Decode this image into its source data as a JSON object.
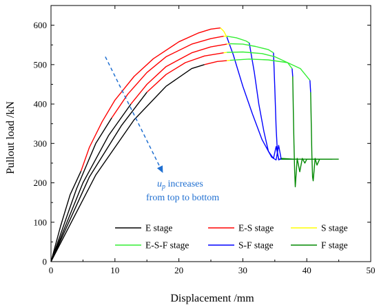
{
  "chart_data": {
    "type": "line",
    "title": "",
    "xlabel": "Displacement /mm",
    "ylabel": "Pullout load /kN",
    "xlim": [
      0,
      50
    ],
    "ylim": [
      0,
      650
    ],
    "xticks": [
      0,
      10,
      20,
      30,
      40,
      50
    ],
    "yticks": [
      0,
      100,
      200,
      300,
      400,
      500,
      600
    ],
    "grid": false,
    "legend_position": "bottom-right",
    "colors": {
      "E": "#000000",
      "E-S": "#ff0000",
      "S": "#ffff00",
      "E-S-F": "#33ee33",
      "S-F": "#0000ff",
      "F": "#008800",
      "annotation": "#1f6fd1"
    },
    "legend": [
      {
        "label": "E stage",
        "stage": "E"
      },
      {
        "label": "E-S stage",
        "stage": "E-S"
      },
      {
        "label": "S stage",
        "stage": "S"
      },
      {
        "label": "E-S-F stage",
        "stage": "E-S-F"
      },
      {
        "label": "S-F stage",
        "stage": "S-F"
      },
      {
        "label": "F stage",
        "stage": "F"
      }
    ],
    "series": [
      {
        "segments": [
          {
            "stage": "E",
            "points": [
              [
                0,
                0
              ],
              [
                1.5,
                90
              ],
              [
                3,
                170
              ],
              [
                4.7,
                230
              ]
            ]
          },
          {
            "stage": "E-S",
            "points": [
              [
                4.7,
                230
              ],
              [
                6,
                290
              ],
              [
                8,
                355
              ],
              [
                10,
                410
              ],
              [
                13,
                470
              ],
              [
                16,
                515
              ],
              [
                20,
                558
              ],
              [
                23,
                580
              ],
              [
                25,
                590
              ],
              [
                26.5,
                593
              ]
            ]
          },
          {
            "stage": "S",
            "points": [
              [
                26.5,
                593
              ],
              [
                27,
                585
              ],
              [
                27.5,
                570
              ]
            ]
          },
          {
            "stage": "S-F",
            "points": [
              [
                27.5,
                570
              ],
              [
                28.5,
                525
              ],
              [
                30,
                445
              ],
              [
                31.5,
                375
              ],
              [
                33,
                310
              ],
              [
                34.5,
                265
              ],
              [
                35.2,
                258
              ],
              [
                35.6,
                295
              ],
              [
                36,
                260
              ],
              [
                38,
                260
              ]
            ]
          },
          {
            "stage": "F",
            "points": [
              [
                38,
                260
              ],
              [
                45,
                260
              ]
            ]
          }
        ]
      },
      {
        "segments": [
          {
            "stage": "E",
            "points": [
              [
                0,
                0
              ],
              [
                4,
                185
              ],
              [
                7,
                300
              ],
              [
                9.5,
                365
              ]
            ]
          },
          {
            "stage": "E-S",
            "points": [
              [
                9.5,
                365
              ],
              [
                12,
                425
              ],
              [
                15,
                480
              ],
              [
                18,
                520
              ],
              [
                22,
                552
              ],
              [
                25,
                566
              ],
              [
                27,
                572
              ]
            ]
          },
          {
            "stage": "S",
            "points": [
              [
                27,
                572
              ],
              [
                27.5,
                572
              ]
            ]
          },
          {
            "stage": "E-S-F",
            "points": [
              [
                27.5,
                572
              ],
              [
                29,
                568
              ],
              [
                30.5,
                560
              ],
              [
                31,
                555
              ]
            ]
          },
          {
            "stage": "S-F",
            "points": [
              [
                31,
                555
              ],
              [
                31.8,
                480
              ],
              [
                32.5,
                400
              ],
              [
                33.3,
                330
              ],
              [
                34,
                280
              ],
              [
                34.8,
                262
              ],
              [
                35.2,
                292
              ],
              [
                35.6,
                260
              ],
              [
                36,
                260
              ]
            ]
          },
          {
            "stage": "F",
            "points": [
              [
                36,
                260
              ],
              [
                38,
                260
              ]
            ]
          }
        ]
      },
      {
        "segments": [
          {
            "stage": "E",
            "points": [
              [
                0,
                0
              ],
              [
                5,
                200
              ],
              [
                9,
                320
              ],
              [
                12.5,
                400
              ]
            ]
          },
          {
            "stage": "E-S",
            "points": [
              [
                12.5,
                400
              ],
              [
                15,
                450
              ],
              [
                18,
                495
              ],
              [
                22,
                530
              ],
              [
                25,
                545
              ],
              [
                27.5,
                552
              ]
            ]
          },
          {
            "stage": "S",
            "points": [
              [
                27.5,
                552
              ],
              [
                28,
                553
              ]
            ]
          },
          {
            "stage": "E-S-F",
            "points": [
              [
                28,
                553
              ],
              [
                30,
                552
              ],
              [
                32,
                546
              ],
              [
                34,
                538
              ],
              [
                34.8,
                530
              ]
            ]
          },
          {
            "stage": "S-F",
            "points": [
              [
                34.8,
                530
              ],
              [
                35,
                440
              ],
              [
                35.2,
                340
              ],
              [
                35.4,
                280
              ],
              [
                35.6,
                258
              ],
              [
                36,
                262
              ]
            ]
          },
          {
            "stage": "F",
            "points": [
              [
                36,
                262
              ],
              [
                38,
                260
              ]
            ]
          }
        ]
      },
      {
        "segments": [
          {
            "stage": "E",
            "points": [
              [
                0,
                0
              ],
              [
                6,
                215
              ],
              [
                11,
                345
              ],
              [
                15,
                430
              ]
            ]
          },
          {
            "stage": "E-S",
            "points": [
              [
                15,
                430
              ],
              [
                18,
                475
              ],
              [
                21,
                505
              ],
              [
                24,
                522
              ],
              [
                27,
                530
              ]
            ]
          },
          {
            "stage": "S",
            "points": [
              [
                27,
                530
              ],
              [
                27.5,
                531
              ]
            ]
          },
          {
            "stage": "E-S-F",
            "points": [
              [
                27.5,
                531
              ],
              [
                30,
                532
              ],
              [
                33,
                528
              ],
              [
                35,
                520
              ],
              [
                37,
                505
              ],
              [
                37.7,
                490
              ]
            ]
          },
          {
            "stage": "S-F",
            "points": [
              [
                37.7,
                490
              ],
              [
                37.8,
                470
              ]
            ]
          },
          {
            "stage": "F",
            "points": [
              [
                37.8,
                470
              ],
              [
                37.9,
                380
              ],
              [
                38,
                300
              ],
              [
                38.1,
                230
              ],
              [
                38.2,
                190
              ],
              [
                38.5,
                262
              ],
              [
                38.9,
                228
              ],
              [
                39.3,
                262
              ],
              [
                39.7,
                250
              ],
              [
                40,
                260
              ],
              [
                42,
                260
              ]
            ]
          }
        ]
      },
      {
        "segments": [
          {
            "stage": "E",
            "points": [
              [
                0,
                0
              ],
              [
                7,
                220
              ],
              [
                13,
                360
              ],
              [
                18,
                445
              ],
              [
                22,
                490
              ],
              [
                24,
                500
              ]
            ]
          },
          {
            "stage": "E-S",
            "points": [
              [
                24,
                500
              ],
              [
                26,
                508
              ],
              [
                27.5,
                510
              ]
            ]
          },
          {
            "stage": "S",
            "points": [
              [
                27.5,
                510
              ],
              [
                28,
                511
              ]
            ]
          },
          {
            "stage": "E-S-F",
            "points": [
              [
                28,
                511
              ],
              [
                31,
                514
              ],
              [
                34,
                512
              ],
              [
                37,
                505
              ],
              [
                39,
                490
              ],
              [
                40.5,
                460
              ]
            ]
          },
          {
            "stage": "S-F",
            "points": [
              [
                40.5,
                460
              ],
              [
                40.6,
                430
              ]
            ]
          },
          {
            "stage": "F",
            "points": [
              [
                40.6,
                430
              ],
              [
                40.7,
                350
              ],
              [
                40.8,
                270
              ],
              [
                40.9,
                215
              ],
              [
                41,
                205
              ],
              [
                41.3,
                262
              ],
              [
                41.6,
                245
              ],
              [
                42,
                260
              ],
              [
                44,
                260
              ]
            ]
          }
        ]
      }
    ],
    "annotation": {
      "line1_var": "u",
      "line1_sub": "p",
      "line1_rest": " increases",
      "line2": "from top to bottom",
      "arrow_from": [
        8.5,
        520
      ],
      "arrow_to": [
        17.5,
        225
      ]
    }
  }
}
